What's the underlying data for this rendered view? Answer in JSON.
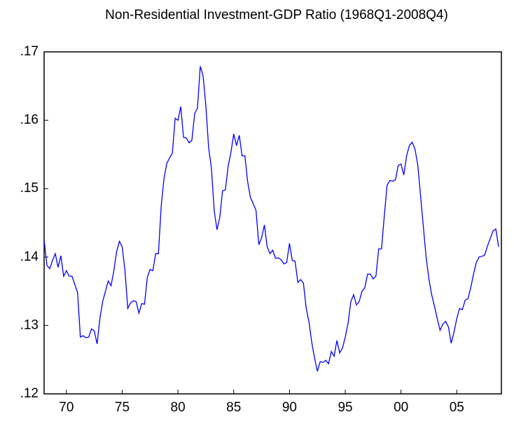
{
  "chart_data": {
    "type": "line",
    "title": "Non-Residential Investment-GDP Ratio (1968Q1-2008Q4)",
    "x": [
      1968,
      1968.25,
      1968.5,
      1968.75,
      1969,
      1969.25,
      1969.5,
      1969.75,
      1970,
      1970.25,
      1970.5,
      1970.75,
      1971,
      1971.25,
      1971.5,
      1971.75,
      1972,
      1972.25,
      1972.5,
      1972.75,
      1973,
      1973.25,
      1973.5,
      1973.75,
      1974,
      1974.25,
      1974.5,
      1974.75,
      1975,
      1975.25,
      1975.5,
      1975.75,
      1976,
      1976.25,
      1976.5,
      1976.75,
      1977,
      1977.25,
      1977.5,
      1977.75,
      1978,
      1978.25,
      1978.5,
      1978.75,
      1979,
      1979.25,
      1979.5,
      1979.75,
      1980,
      1980.25,
      1980.5,
      1980.75,
      1981,
      1981.25,
      1981.5,
      1981.75,
      1982,
      1982.25,
      1982.5,
      1982.75,
      1983,
      1983.25,
      1983.5,
      1983.75,
      1984,
      1984.25,
      1984.5,
      1984.75,
      1985,
      1985.25,
      1985.5,
      1985.75,
      1986,
      1986.25,
      1986.5,
      1986.75,
      1987,
      1987.25,
      1987.5,
      1987.75,
      1988,
      1988.25,
      1988.5,
      1988.75,
      1989,
      1989.25,
      1989.5,
      1989.75,
      1990,
      1990.25,
      1990.5,
      1990.75,
      1991,
      1991.25,
      1991.5,
      1991.75,
      1992,
      1992.25,
      1992.5,
      1992.75,
      1993,
      1993.25,
      1993.5,
      1993.75,
      1994,
      1994.25,
      1994.5,
      1994.75,
      1995,
      1995.25,
      1995.5,
      1995.75,
      1996,
      1996.25,
      1996.5,
      1996.75,
      1997,
      1997.25,
      1997.5,
      1997.75,
      1998,
      1998.25,
      1998.5,
      1998.75,
      1999,
      1999.25,
      1999.5,
      1999.75,
      2000,
      2000.25,
      2000.5,
      2000.75,
      2001,
      2001.25,
      2001.5,
      2001.75,
      2002,
      2002.25,
      2002.5,
      2002.75,
      2003,
      2003.25,
      2003.5,
      2003.75,
      2004,
      2004.25,
      2004.5,
      2004.75,
      2005,
      2005.25,
      2005.5,
      2005.75,
      2006,
      2006.25,
      2006.5,
      2006.75,
      2007,
      2007.25,
      2007.5,
      2007.75,
      2008,
      2008.25,
      2008.5,
      2008.75
    ],
    "values": [
      0.1425,
      0.1388,
      0.1383,
      0.1395,
      0.1405,
      0.1385,
      0.1402,
      0.1372,
      0.138,
      0.1372,
      0.1372,
      0.136,
      0.1348,
      0.1283,
      0.1285,
      0.1282,
      0.1283,
      0.1295,
      0.1292,
      0.1273,
      0.131,
      0.1335,
      0.135,
      0.1365,
      0.1358,
      0.138,
      0.1408,
      0.1423,
      0.1415,
      0.138,
      0.1325,
      0.1333,
      0.1336,
      0.1335,
      0.1318,
      0.1332,
      0.1331,
      0.137,
      0.1382,
      0.138,
      0.1405,
      0.1405,
      0.1475,
      0.1515,
      0.1537,
      0.1545,
      0.1552,
      0.1603,
      0.16,
      0.162,
      0.1575,
      0.1574,
      0.1567,
      0.1571,
      0.161,
      0.1618,
      0.1679,
      0.1665,
      0.1622,
      0.156,
      0.153,
      0.1468,
      0.144,
      0.1458,
      0.1497,
      0.1498,
      0.1533,
      0.1553,
      0.158,
      0.1563,
      0.1578,
      0.1548,
      0.1548,
      0.151,
      0.1487,
      0.1478,
      0.1468,
      0.1418,
      0.1428,
      0.1447,
      0.1415,
      0.1405,
      0.141,
      0.1398,
      0.1399,
      0.1396,
      0.139,
      0.1392,
      0.142,
      0.1395,
      0.1394,
      0.1363,
      0.1367,
      0.1362,
      0.1325,
      0.1305,
      0.1275,
      0.1252,
      0.1233,
      0.1247,
      0.1246,
      0.1249,
      0.1244,
      0.1262,
      0.1255,
      0.1278,
      0.126,
      0.1267,
      0.1283,
      0.1303,
      0.1335,
      0.1345,
      0.133,
      0.1335,
      0.135,
      0.1355,
      0.1375,
      0.1375,
      0.1368,
      0.1372,
      0.1412,
      0.1412,
      0.146,
      0.1505,
      0.1512,
      0.1511,
      0.1513,
      0.1534,
      0.1536,
      0.152,
      0.1548,
      0.1563,
      0.1568,
      0.1558,
      0.1535,
      0.149,
      0.1445,
      0.14,
      0.1368,
      0.1345,
      0.1328,
      0.131,
      0.1293,
      0.1302,
      0.1306,
      0.1298,
      0.1274,
      0.129,
      0.131,
      0.1325,
      0.1323,
      0.1337,
      0.1339,
      0.1355,
      0.1375,
      0.1392,
      0.14,
      0.1401,
      0.1403,
      0.1416,
      0.1427,
      0.1438,
      0.1441,
      0.1415
    ],
    "color": "#0000ff",
    "xlim": [
      1968,
      2009
    ],
    "xticks": [
      {
        "value": 1970,
        "label": "70"
      },
      {
        "value": 1975,
        "label": "75"
      },
      {
        "value": 1980,
        "label": "80"
      },
      {
        "value": 1985,
        "label": "85"
      },
      {
        "value": 1990,
        "label": "90"
      },
      {
        "value": 1995,
        "label": "95"
      },
      {
        "value": 2000,
        "label": "00"
      },
      {
        "value": 2005,
        "label": "05"
      }
    ],
    "ylim": [
      0.12,
      0.17
    ],
    "yticks": [
      {
        "value": 0.12,
        "label": ".12"
      },
      {
        "value": 0.13,
        "label": ".13"
      },
      {
        "value": 0.14,
        "label": ".14"
      },
      {
        "value": 0.15,
        "label": ".15"
      },
      {
        "value": 0.16,
        "label": ".16"
      },
      {
        "value": 0.17,
        "label": ".17"
      }
    ],
    "grid": false
  }
}
